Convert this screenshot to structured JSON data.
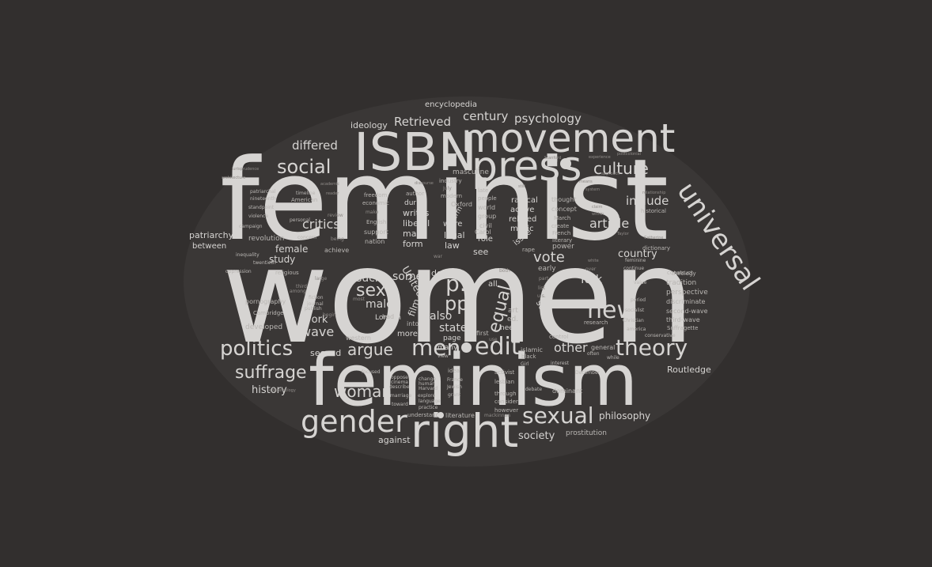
{
  "colors": {
    "background": "#322f2e",
    "word": "#d6d4d2",
    "word_dim": "#b9b6b3",
    "word_faint": "#8f8b88"
  },
  "words": [
    {
      "text": "women",
      "weight": 1.0
    },
    {
      "text": "feminist",
      "weight": 0.95
    },
    {
      "text": "feminism",
      "weight": 0.85
    },
    {
      "text": "movement",
      "weight": 0.6
    },
    {
      "text": "ISBN",
      "weight": 0.58
    },
    {
      "text": "press",
      "weight": 0.58
    },
    {
      "text": "right",
      "weight": 0.55
    },
    {
      "text": "universal",
      "weight": 0.4
    },
    {
      "text": "gender",
      "weight": 0.4
    },
    {
      "text": "theory",
      "weight": 0.32
    },
    {
      "text": "sexual",
      "weight": 0.32
    },
    {
      "text": "politics",
      "weight": 0.3
    },
    {
      "text": "new",
      "weight": 0.3
    },
    {
      "text": "edit",
      "weight": 0.3
    },
    {
      "text": "men",
      "weight": 0.3
    },
    {
      "text": "social",
      "weight": 0.28
    },
    {
      "text": "suffrage",
      "weight": 0.27
    },
    {
      "text": "woman",
      "weight": 0.24
    },
    {
      "text": "culture",
      "weight": 0.22
    },
    {
      "text": "sex",
      "weight": 0.22
    },
    {
      "text": "p.",
      "weight": 0.22
    },
    {
      "text": "pp.",
      "weight": 0.2
    },
    {
      "text": "equal",
      "weight": 0.2
    },
    {
      "text": "century",
      "weight": 0.18
    },
    {
      "text": "psychology",
      "weight": 0.18
    },
    {
      "text": "Retrieved",
      "weight": 0.18
    },
    {
      "text": "differed",
      "weight": 0.18
    },
    {
      "text": "critics",
      "weight": 0.18
    },
    {
      "text": "vote",
      "weight": 0.18
    },
    {
      "text": "article",
      "weight": 0.18
    },
    {
      "text": "include",
      "weight": 0.18
    },
    {
      "text": "country",
      "weight": 0.16
    },
    {
      "text": "history",
      "weight": 0.16
    },
    {
      "text": "argue",
      "weight": 0.18
    },
    {
      "text": "wave",
      "weight": 0.18
    },
    {
      "text": "work",
      "weight": 0.16
    },
    {
      "text": "philosophy",
      "weight": 0.14
    },
    {
      "text": "society",
      "weight": 0.14
    },
    {
      "text": "against",
      "weight": 0.13
    },
    {
      "text": "Routledge",
      "weight": 0.13
    },
    {
      "text": "ideology",
      "weight": 0.13
    },
    {
      "text": "encyclopedia",
      "weight": 0.12
    },
    {
      "text": "patriarchy",
      "weight": 0.12
    },
    {
      "text": "between",
      "weight": 0.12
    },
    {
      "text": "female",
      "weight": 0.13
    },
    {
      "text": "study",
      "weight": 0.13
    },
    {
      "text": "such",
      "weight": 0.16
    },
    {
      "text": "male",
      "weight": 0.16
    },
    {
      "text": "state",
      "weight": 0.15
    },
    {
      "text": "also",
      "weight": 0.15
    },
    {
      "text": "some",
      "weight": 0.15
    },
    {
      "text": "second",
      "weight": 0.13
    },
    {
      "text": "York",
      "weight": 0.15
    },
    {
      "text": "other",
      "weight": 0.15
    },
    {
      "text": "United",
      "weight": 0.14
    },
    {
      "text": "film",
      "weight": 0.14
    },
    {
      "text": "science",
      "weight": 0.12
    },
    {
      "text": "law",
      "weight": 0.12
    },
    {
      "text": "main",
      "weight": 0.12
    },
    {
      "text": "form",
      "weight": 0.12
    },
    {
      "text": "legal",
      "weight": 0.12
    },
    {
      "text": "see",
      "weight": 0.12
    },
    {
      "text": "role",
      "weight": 0.11
    },
    {
      "text": "issue",
      "weight": 0.11
    },
    {
      "text": "music",
      "weight": 0.11
    },
    {
      "text": "related",
      "weight": 0.11
    },
    {
      "text": "active",
      "weight": 0.1
    },
    {
      "text": "radical",
      "weight": 0.11
    },
    {
      "text": "writes",
      "weight": 0.11
    },
    {
      "text": "liberal",
      "weight": 0.11
    },
    {
      "text": "during",
      "weight": 0.1
    },
    {
      "text": "were",
      "weight": 0.1
    },
    {
      "text": "term",
      "weight": 0.1
    },
    {
      "text": "doi",
      "weight": 0.1
    },
    {
      "text": "more",
      "weight": 0.1
    },
    {
      "text": "many",
      "weight": 0.1
    },
    {
      "text": "London",
      "weight": 0.1
    },
    {
      "text": "page",
      "weight": 0.1
    },
    {
      "text": "need",
      "weight": 0.1
    },
    {
      "text": "first",
      "weight": 0.09
    },
    {
      "text": "all",
      "weight": 0.1
    },
    {
      "text": "art",
      "weight": 0.09
    },
    {
      "text": "ed.",
      "weight": 0.09
    },
    {
      "text": "islamic",
      "weight": 0.09
    },
    {
      "text": "power",
      "weight": 0.09
    },
    {
      "text": "early",
      "weight": 0.09
    },
    {
      "text": "tradition",
      "weight": 0.09
    },
    {
      "text": "perspective",
      "weight": 0.09
    },
    {
      "text": "discriminate",
      "weight": 0.08
    },
    {
      "text": "second-wave",
      "weight": 0.08
    },
    {
      "text": "third-wave",
      "weight": 0.08
    },
    {
      "text": "Suffragette",
      "weight": 0.07
    },
    {
      "text": "prostitution",
      "weight": 0.09
    },
    {
      "text": "literature",
      "weight": 0.08
    },
    {
      "text": "understand",
      "weight": 0.07
    },
    {
      "text": "revolution",
      "weight": 0.09
    },
    {
      "text": "pornography",
      "weight": 0.08
    },
    {
      "text": "developed",
      "weight": 0.09
    },
    {
      "text": "Cambridge",
      "weight": 0.07
    },
    {
      "text": "religious",
      "weight": 0.07
    },
    {
      "text": "western",
      "weight": 0.09
    },
    {
      "text": "into",
      "weight": 0.09
    },
    {
      "text": "general",
      "weight": 0.08
    },
    {
      "text": "control",
      "weight": 0.08
    },
    {
      "text": "dominant",
      "weight": 0.08
    },
    {
      "text": "research",
      "weight": 0.07
    },
    {
      "text": "Christian",
      "weight": 0.07
    },
    {
      "text": "socialist",
      "weight": 0.07
    },
    {
      "text": "period",
      "weight": 0.07
    },
    {
      "text": "construct",
      "weight": 0.07
    },
    {
      "text": "theology",
      "weight": 0.07
    },
    {
      "text": "dictionary",
      "weight": 0.07
    },
    {
      "text": "historical",
      "weight": 0.07
    },
    {
      "text": "masculine",
      "weight": 0.08
    },
    {
      "text": "industry",
      "weight": 0.07
    },
    {
      "text": "Oxford",
      "weight": 0.08
    },
    {
      "text": "modern",
      "weight": 0.07
    },
    {
      "text": "world",
      "weight": 0.08
    },
    {
      "text": "group",
      "weight": 0.08
    },
    {
      "text": "civil",
      "weight": 0.08
    },
    {
      "text": "Carol",
      "weight": 0.08
    },
    {
      "text": "people",
      "weight": 0.07
    },
    {
      "text": "late",
      "weight": 0.07
    },
    {
      "text": "thought",
      "weight": 0.08
    },
    {
      "text": "concept",
      "weight": 0.08
    },
    {
      "text": "create",
      "weight": 0.07
    },
    {
      "text": "French",
      "weight": 0.07
    },
    {
      "text": "literary",
      "weight": 0.07
    },
    {
      "text": "March",
      "weight": 0.07
    },
    {
      "text": "rape",
      "weight": 0.07
    },
    {
      "text": "support",
      "weight": 0.08
    },
    {
      "text": "nation",
      "weight": 0.08
    },
    {
      "text": "English",
      "weight": 0.07
    },
    {
      "text": "economic",
      "weight": 0.07
    },
    {
      "text": "freedom",
      "weight": 0.07
    },
    {
      "text": "author",
      "weight": 0.07
    },
    {
      "text": "American",
      "weight": 0.07
    },
    {
      "text": "timeline",
      "weight": 0.06
    },
    {
      "text": "campaign",
      "weight": 0.06
    },
    {
      "text": "violence",
      "weight": 0.06
    },
    {
      "text": "nineteenth",
      "weight": 0.06
    },
    {
      "text": "patriarchal",
      "weight": 0.06
    },
    {
      "text": "standpoint",
      "weight": 0.06
    },
    {
      "text": "inequality",
      "weight": 0.06
    },
    {
      "text": "twentieth",
      "weight": 0.06
    },
    {
      "text": "oppression",
      "weight": 0.06
    },
    {
      "text": "publish",
      "weight": 0.06
    },
    {
      "text": "fiction",
      "weight": 0.06
    },
    {
      "text": "journal",
      "weight": 0.06
    },
    {
      "text": "achieve",
      "weight": 0.07
    },
    {
      "text": "concern",
      "weight": 0.06
    },
    {
      "text": "personal",
      "weight": 0.06
    },
    {
      "text": "had",
      "weight": 0.07
    },
    {
      "text": "explore",
      "weight": 0.06
    },
    {
      "text": "describe",
      "weight": 0.06
    },
    {
      "text": "oppose",
      "weight": 0.06
    },
    {
      "text": "cinema",
      "weight": 0.06
    },
    {
      "text": "marriage",
      "weight": 0.06
    },
    {
      "text": "toward",
      "weight": 0.06
    },
    {
      "text": "focused",
      "weight": 0.06
    },
    {
      "text": "idea",
      "weight": 0.06
    },
    {
      "text": "change",
      "weight": 0.06
    },
    {
      "text": "human",
      "weight": 0.06
    },
    {
      "text": "Harvard",
      "weight": 0.06
    },
    {
      "text": "language",
      "weight": 0.06
    },
    {
      "text": "practice",
      "weight": 0.06
    },
    {
      "text": "France",
      "weight": 0.06
    },
    {
      "text": "Jewish",
      "weight": 0.06
    },
    {
      "text": "grant",
      "weight": 0.06
    },
    {
      "text": "activist",
      "weight": 0.06
    },
    {
      "text": "lesbian",
      "weight": 0.06
    },
    {
      "text": "through",
      "weight": 0.06
    },
    {
      "text": "consider",
      "weight": 0.06
    },
    {
      "text": "however",
      "weight": 0.06
    },
    {
      "text": "black",
      "weight": 0.06
    },
    {
      "text": "Girl",
      "weight": 0.06
    },
    {
      "text": "view",
      "weight": 0.06
    },
    {
      "text": "December",
      "weight": 0.06
    },
    {
      "text": "interest",
      "weight": 0.06
    },
    {
      "text": "debate",
      "weight": 0.06
    },
    {
      "text": "often",
      "weight": 0.06
    },
    {
      "text": "while",
      "weight": 0.06
    },
    {
      "text": "conservative",
      "weight": 0.06
    },
    {
      "text": "america",
      "weight": 0.06
    },
    {
      "text": "value",
      "weight": 0.06
    },
    {
      "text": "continue",
      "weight": 0.06
    },
    {
      "text": "feminine",
      "weight": 0.06
    },
    {
      "text": "Catherine",
      "weight": 0.05
    },
    {
      "text": "Taylor",
      "weight": 0.05
    },
    {
      "text": "relationship",
      "weight": 0.05
    },
    {
      "text": "postcolonial",
      "weight": 0.05
    },
    {
      "text": "experience",
      "weight": 0.05
    },
    {
      "text": "Stanford",
      "weight": 0.05
    },
    {
      "text": "approach",
      "weight": 0.05
    },
    {
      "text": "still",
      "weight": 0.05
    },
    {
      "text": "means",
      "weight": 0.05
    },
    {
      "text": "system",
      "weight": 0.05
    },
    {
      "text": "claim",
      "weight": 0.05
    },
    {
      "text": "within",
      "weight": 0.05
    },
    {
      "text": "over",
      "weight": 0.05
    },
    {
      "text": "white",
      "weight": 0.05
    },
    {
      "text": "list",
      "weight": 0.05
    },
    {
      "text": "part",
      "weight": 0.05
    },
    {
      "text": "both",
      "weight": 0.05
    },
    {
      "text": "use",
      "weight": 0.05
    },
    {
      "text": "war",
      "weight": 0.05
    },
    {
      "text": "academic",
      "weight": 0.05
    },
    {
      "text": "architecture",
      "weight": 0.05
    },
    {
      "text": "jurisprudence",
      "weight": 0.05
    },
    {
      "text": "epistemology",
      "weight": 0.05
    },
    {
      "text": "reader",
      "weight": 0.05
    },
    {
      "text": "discourse",
      "weight": 0.05
    },
    {
      "text": "review",
      "weight": 0.05
    },
    {
      "text": "being",
      "weight": 0.05
    },
    {
      "text": "large",
      "weight": 0.05
    },
    {
      "text": "third",
      "weight": 0.05
    },
    {
      "text": "among",
      "weight": 0.05
    },
    {
      "text": "begin",
      "weight": 0.05
    },
    {
      "text": "make",
      "weight": 0.05
    },
    {
      "text": "u.s.",
      "weight": 0.05
    },
    {
      "text": "July",
      "weight": 0.05
    },
    {
      "text": "most",
      "weight": 0.05
    },
    {
      "text": "mackinnon",
      "weight": 0.05
    }
  ]
}
